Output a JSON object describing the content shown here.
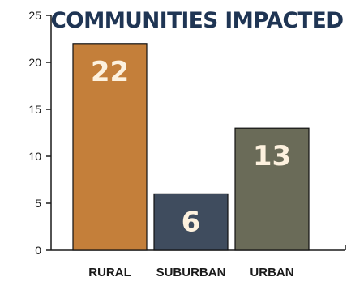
{
  "chart_data": {
    "type": "bar",
    "title": "COMMUNITIES IMPACTED",
    "categories": [
      "RURAL",
      "SUBURBAN",
      "URBAN"
    ],
    "values": [
      22,
      6,
      13
    ],
    "value_labels": [
      "22",
      "6",
      "13"
    ],
    "colors": [
      "#c47f3a",
      "#3f4c5e",
      "#6a6b58"
    ],
    "ylim": [
      0,
      25
    ],
    "yticks": [
      0,
      5,
      10,
      15,
      20,
      25
    ],
    "xlabel": "",
    "ylabel": "",
    "grid": false
  }
}
